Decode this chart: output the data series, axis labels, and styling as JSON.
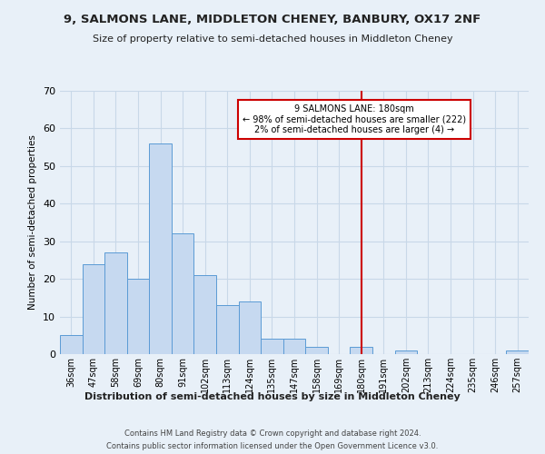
{
  "title": "9, SALMONS LANE, MIDDLETON CHENEY, BANBURY, OX17 2NF",
  "subtitle": "Size of property relative to semi-detached houses in Middleton Cheney",
  "xlabel": "Distribution of semi-detached houses by size in Middleton Cheney",
  "ylabel": "Number of semi-detached properties",
  "footnote1": "Contains HM Land Registry data © Crown copyright and database right 2024.",
  "footnote2": "Contains public sector information licensed under the Open Government Licence v3.0.",
  "bin_labels": [
    "36sqm",
    "47sqm",
    "58sqm",
    "69sqm",
    "80sqm",
    "91sqm",
    "102sqm",
    "113sqm",
    "124sqm",
    "135sqm",
    "147sqm",
    "158sqm",
    "169sqm",
    "180sqm",
    "191sqm",
    "202sqm",
    "213sqm",
    "224sqm",
    "235sqm",
    "246sqm",
    "257sqm"
  ],
  "bar_heights": [
    5,
    24,
    27,
    20,
    56,
    32,
    21,
    13,
    14,
    4,
    4,
    2,
    0,
    2,
    0,
    1,
    0,
    0,
    0,
    0,
    1
  ],
  "bar_color": "#c6d9f0",
  "bar_edge_color": "#5b9bd5",
  "grid_color": "#c8d8e8",
  "background_color": "#e8f0f8",
  "marker_line_x_label": "180sqm",
  "marker_line_color": "#cc0000",
  "annotation_title": "9 SALMONS LANE: 180sqm",
  "annotation_line1": "← 98% of semi-detached houses are smaller (222)",
  "annotation_line2": "2% of semi-detached houses are larger (4) →",
  "annotation_box_color": "#cc0000",
  "ylim": [
    0,
    70
  ],
  "yticks": [
    0,
    10,
    20,
    30,
    40,
    50,
    60,
    70
  ]
}
